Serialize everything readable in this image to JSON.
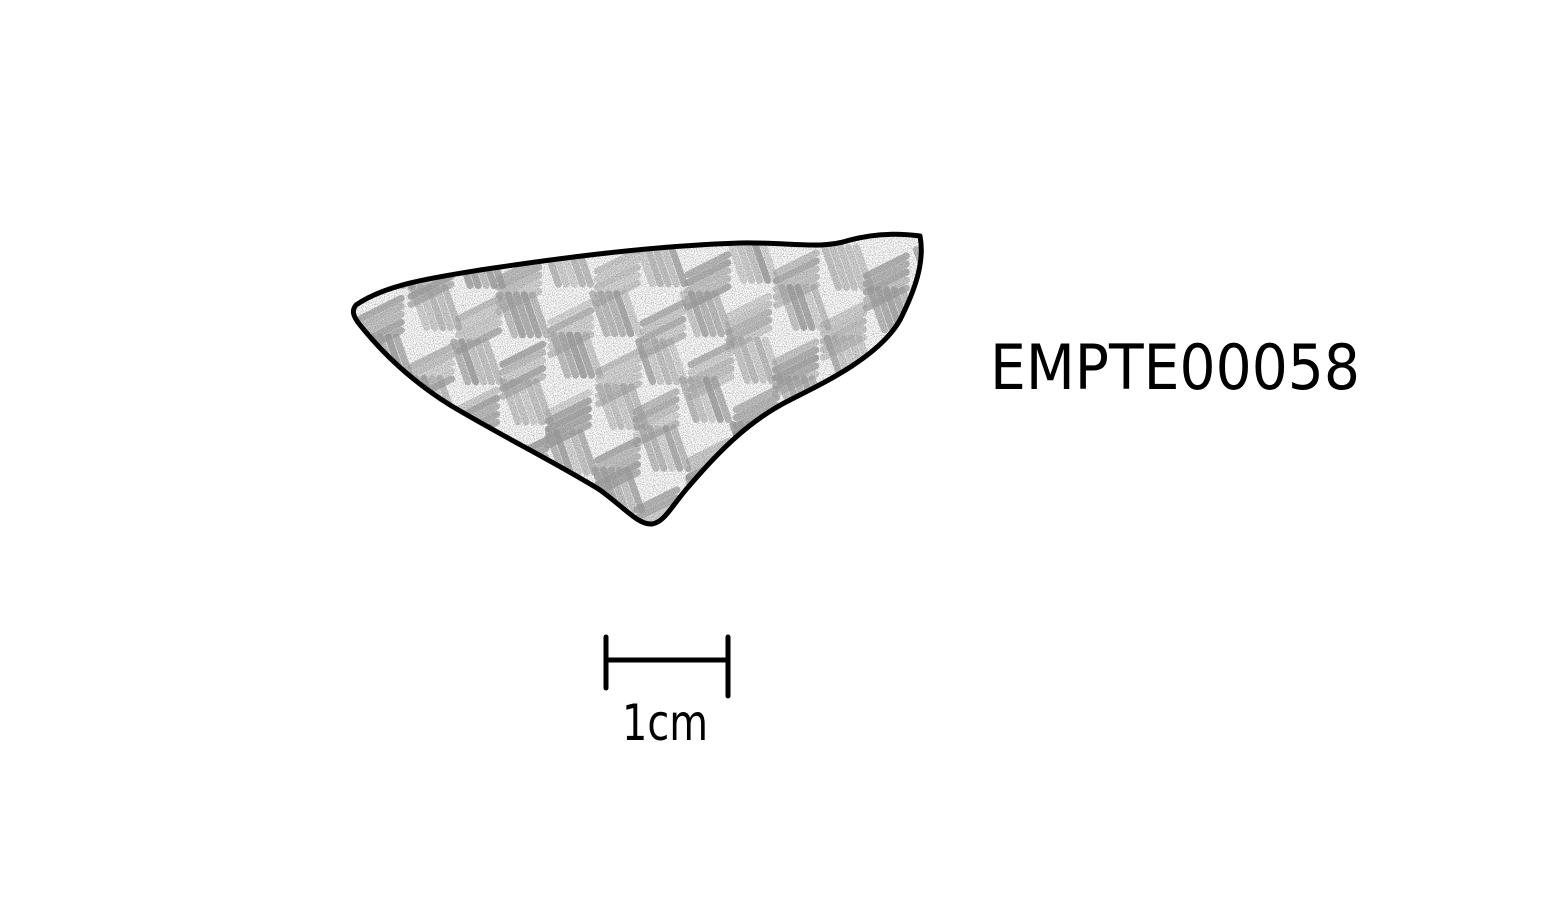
{
  "specimen": {
    "id_label": "EMPTE00058"
  },
  "scale_bar": {
    "label": "1cm"
  },
  "colors": {
    "ink": "#000000",
    "shading": "#8a8a8a",
    "background": "#ffffff"
  }
}
